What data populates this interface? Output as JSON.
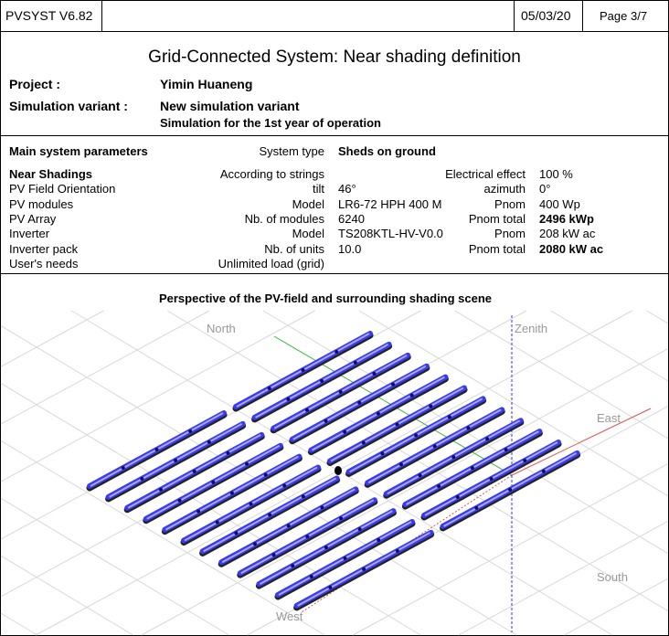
{
  "header": {
    "software": "PVSYST V6.82",
    "date": "05/03/20",
    "page": "Page 3/7"
  },
  "title": "Grid-Connected System: Near shading definition",
  "project": {
    "label": "Project :",
    "value": "Yimin Huaneng"
  },
  "variant": {
    "label": "Simulation variant :",
    "value": "New simulation variant",
    "note": "Simulation for the 1st year of operation"
  },
  "params": {
    "heading": "Main system parameters",
    "system_type_label": "System type",
    "system_type": "Sheds on ground",
    "rows": [
      {
        "name": "Near Shadings",
        "k1": "According to strings",
        "v1": "",
        "k2": "Electrical effect",
        "v2": "100 %"
      },
      {
        "name": "PV Field Orientation",
        "k1": "tilt",
        "v1": "46°",
        "k2": "azimuth",
        "v2": "0°"
      },
      {
        "name": "PV modules",
        "k1": "Model",
        "v1": "LR6-72 HPH 400 M",
        "k2": "Pnom",
        "v2": "400 Wp"
      },
      {
        "name": "PV Array",
        "k1": "Nb. of modules",
        "v1": "6240",
        "k2": "Pnom total",
        "v2": "2496 kWp"
      },
      {
        "name": "Inverter",
        "k1": "Model",
        "v1": "TS208KTL-HV-V0.0",
        "k2": "Pnom",
        "v2": "208 kW ac"
      },
      {
        "name": "Inverter pack",
        "k1": "Nb. of units",
        "v1": "10.0",
        "k2": "Pnom total",
        "v2": "2080 kW ac"
      },
      {
        "name": "User's needs",
        "k1": "Unlimited load (grid)",
        "v1": "",
        "k2": "",
        "v2": ""
      }
    ]
  },
  "scene": {
    "title": "Perspective of the PV-field and surrounding shading scene",
    "labels": {
      "north": "North",
      "zenith": "Zenith",
      "east": "East",
      "south": "South",
      "west": "West"
    },
    "colors": {
      "module": "#3a3af0",
      "module_fill": "#a8a8ff",
      "north_axis": "#3cb43c",
      "east_axis": "#e05050",
      "zenith_axis": "#3030ff",
      "grid": "#d8d8d8"
    }
  }
}
